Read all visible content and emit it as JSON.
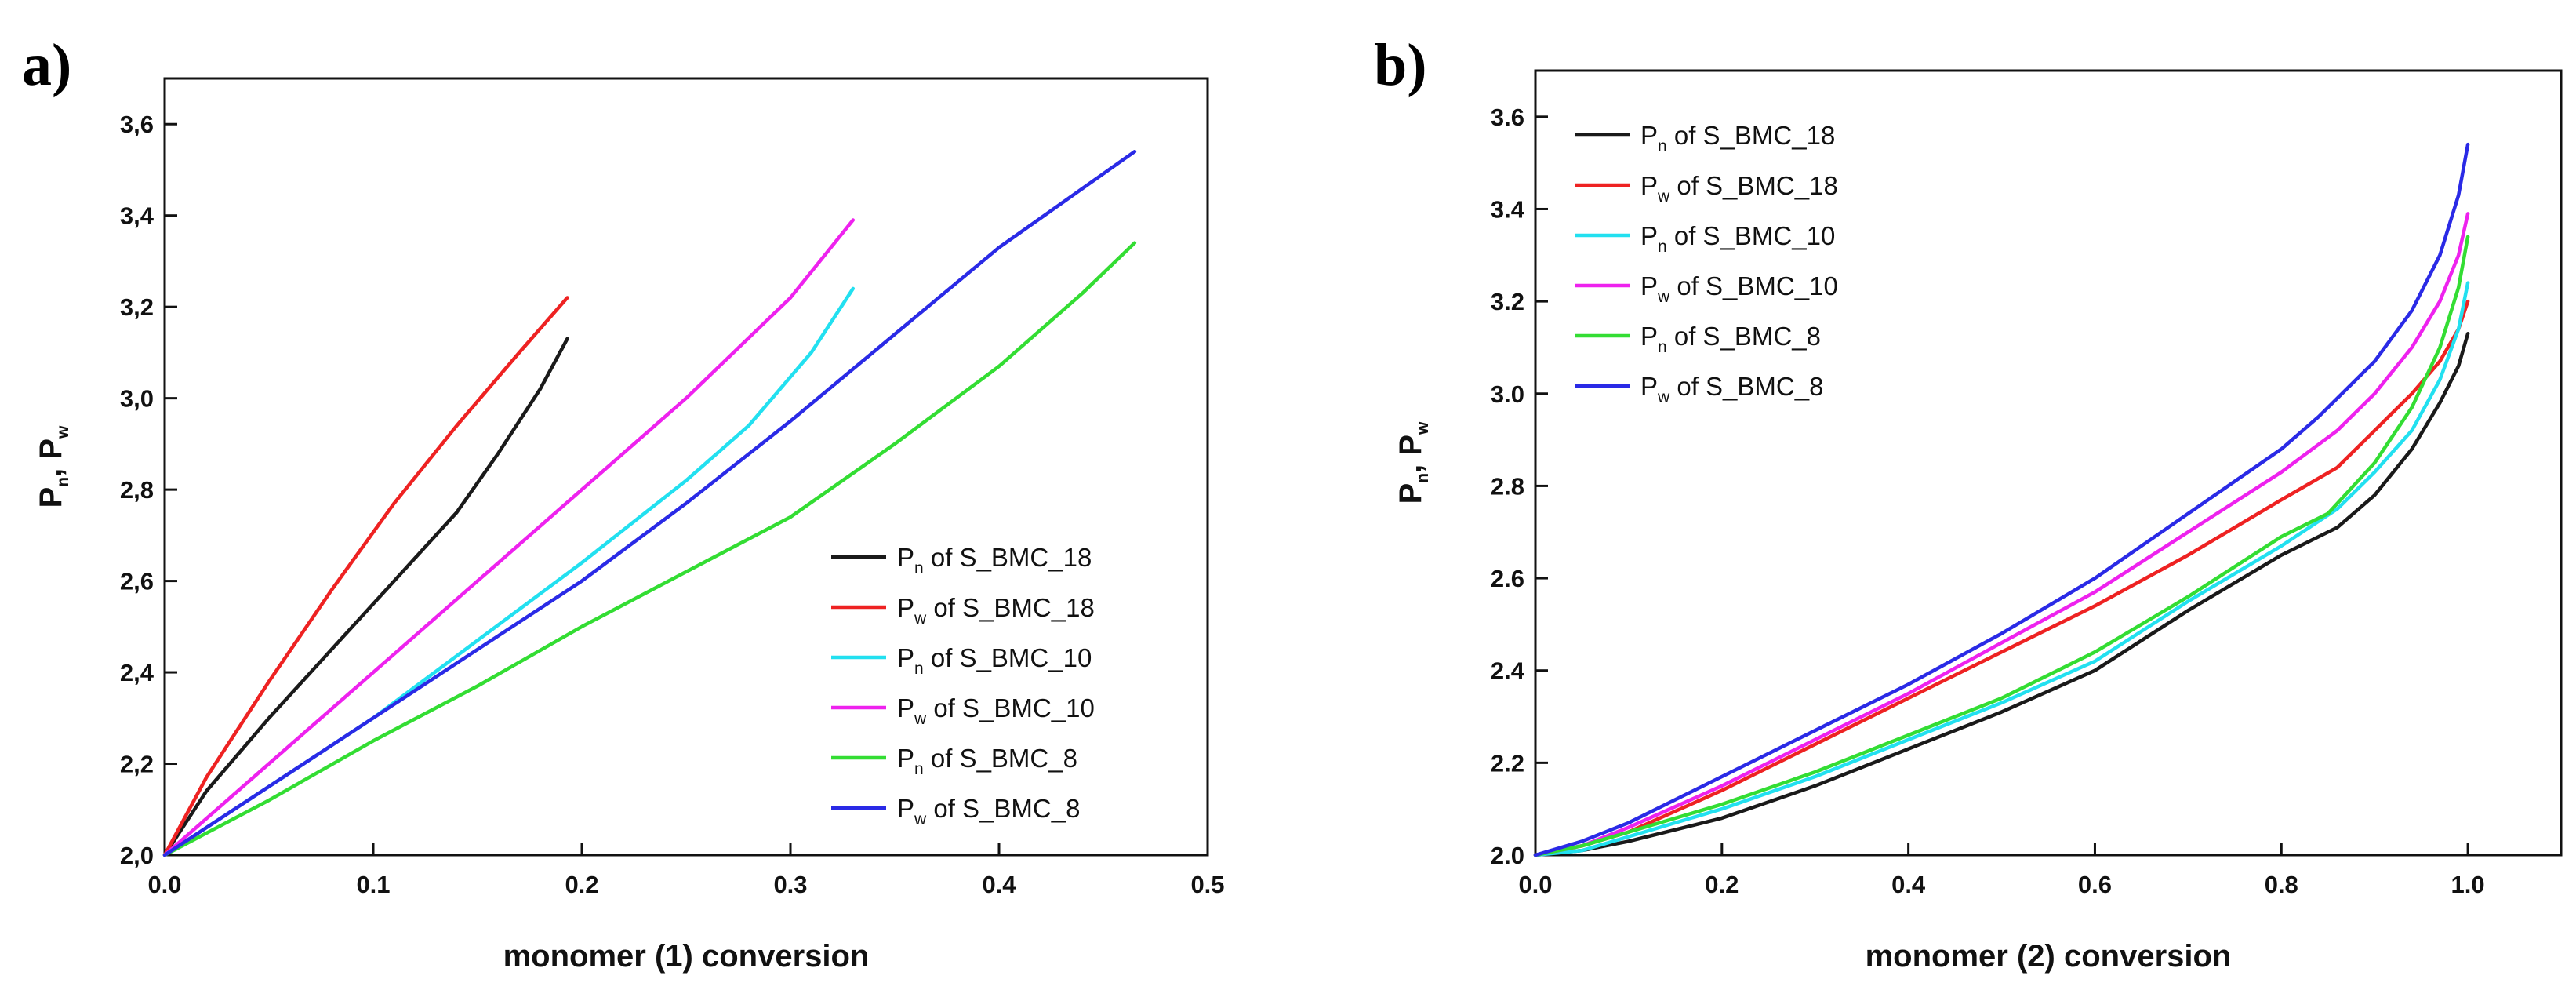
{
  "chart_data": [
    {
      "type": "line",
      "panel_label": "a)",
      "title": "",
      "xlabel": "monomer (1) conversion",
      "ylabel": {
        "main1": "P",
        "sub1": "n",
        "sep": ", ",
        "main2": "P",
        "sub2": "w"
      },
      "xlim": [
        0.0,
        0.5
      ],
      "ylim": [
        2.0,
        3.7
      ],
      "xticks": [
        0.0,
        0.1,
        0.2,
        0.3,
        0.4,
        0.5
      ],
      "xtick_labels": [
        "0.0",
        "0.1",
        "0.2",
        "0.3",
        "0.4",
        "0.5"
      ],
      "yticks": [
        2.0,
        2.2,
        2.4,
        2.6,
        2.8,
        3.0,
        3.2,
        3.4,
        3.6
      ],
      "ytick_labels": [
        "2,0",
        "2,2",
        "2,4",
        "2,6",
        "2,8",
        "3,0",
        "3,2",
        "3,4",
        "3,6"
      ],
      "legend_position": "lower-right",
      "series": [
        {
          "name": "Pn of S_BMC_18",
          "main": "P",
          "sub": "n",
          "rest": " of S_BMC_18",
          "color": "#1a1a1a",
          "x": [
            0,
            0.02,
            0.05,
            0.08,
            0.11,
            0.14,
            0.16,
            0.18,
            0.193
          ],
          "y": [
            2.0,
            2.14,
            2.3,
            2.45,
            2.6,
            2.75,
            2.88,
            3.02,
            3.13
          ]
        },
        {
          "name": "Pw of S_BMC_18",
          "main": "P",
          "sub": "w",
          "rest": " of S_BMC_18",
          "color": "#ee2222",
          "x": [
            0,
            0.02,
            0.05,
            0.08,
            0.11,
            0.14,
            0.17,
            0.193
          ],
          "y": [
            2.0,
            2.17,
            2.38,
            2.58,
            2.77,
            2.94,
            3.1,
            3.22
          ]
        },
        {
          "name": "Pn of S_BMC_10",
          "main": "P",
          "sub": "n",
          "rest": " of S_BMC_10",
          "color": "#22e0f0",
          "x": [
            0,
            0.05,
            0.1,
            0.15,
            0.2,
            0.25,
            0.28,
            0.31,
            0.33
          ],
          "y": [
            2.0,
            2.15,
            2.3,
            2.47,
            2.64,
            2.82,
            2.94,
            3.1,
            3.24
          ]
        },
        {
          "name": "Pw of S_BMC_10",
          "main": "P",
          "sub": "w",
          "rest": " of S_BMC_10",
          "color": "#ee22ee",
          "x": [
            0,
            0.05,
            0.1,
            0.15,
            0.2,
            0.25,
            0.3,
            0.33
          ],
          "y": [
            2.0,
            2.2,
            2.4,
            2.6,
            2.8,
            3.0,
            3.22,
            3.39
          ]
        },
        {
          "name": "Pn of S_BMC_8",
          "main": "P",
          "sub": "n",
          "rest": " of S_BMC_8",
          "color": "#33dd33",
          "x": [
            0,
            0.05,
            0.1,
            0.15,
            0.2,
            0.25,
            0.3,
            0.35,
            0.4,
            0.44,
            0.465
          ],
          "y": [
            2.0,
            2.12,
            2.25,
            2.37,
            2.5,
            2.62,
            2.74,
            2.9,
            3.07,
            3.23,
            3.34
          ]
        },
        {
          "name": "Pw of S_BMC_8",
          "main": "P",
          "sub": "w",
          "rest": " of S_BMC_8",
          "color": "#2a2ae6",
          "x": [
            0,
            0.05,
            0.1,
            0.15,
            0.2,
            0.25,
            0.3,
            0.35,
            0.4,
            0.465
          ],
          "y": [
            2.0,
            2.15,
            2.3,
            2.45,
            2.6,
            2.77,
            2.95,
            3.14,
            3.33,
            3.54
          ]
        }
      ]
    },
    {
      "type": "line",
      "panel_label": "b)",
      "title": "",
      "xlabel": "monomer (2) conversion",
      "ylabel": {
        "main1": "P",
        "sub1": "n",
        "sep": ", ",
        "main2": "P",
        "sub2": "w"
      },
      "xlim": [
        0.0,
        1.1
      ],
      "ylim": [
        2.0,
        3.7
      ],
      "xticks": [
        0.0,
        0.2,
        0.4,
        0.6,
        0.8,
        1.0
      ],
      "xtick_labels": [
        "0.0",
        "0.2",
        "0.4",
        "0.6",
        "0.8",
        "1.0"
      ],
      "yticks": [
        2.0,
        2.2,
        2.4,
        2.6,
        2.8,
        3.0,
        3.2,
        3.4,
        3.6
      ],
      "ytick_labels": [
        "2.0",
        "2.2",
        "2.4",
        "2.6",
        "2.8",
        "3.0",
        "3.2",
        "3.4",
        "3.6"
      ],
      "legend_position": "top-left",
      "series": [
        {
          "name": "Pn of S_BMC_18",
          "main": "P",
          "sub": "n",
          "rest": " of S_BMC_18",
          "color": "#1a1a1a",
          "x": [
            0,
            0.05,
            0.1,
            0.2,
            0.3,
            0.4,
            0.5,
            0.6,
            0.7,
            0.8,
            0.86,
            0.9,
            0.94,
            0.97,
            0.99,
            1.0
          ],
          "y": [
            2.0,
            2.01,
            2.03,
            2.08,
            2.15,
            2.23,
            2.31,
            2.4,
            2.53,
            2.65,
            2.71,
            2.78,
            2.88,
            2.98,
            3.06,
            3.13
          ]
        },
        {
          "name": "Pw of S_BMC_18",
          "main": "P",
          "sub": "w",
          "rest": " of S_BMC_18",
          "color": "#ee2222",
          "x": [
            0,
            0.05,
            0.1,
            0.2,
            0.3,
            0.4,
            0.5,
            0.6,
            0.7,
            0.8,
            0.86,
            0.9,
            0.94,
            0.97,
            0.99,
            1.0
          ],
          "y": [
            2.0,
            2.02,
            2.05,
            2.14,
            2.24,
            2.34,
            2.44,
            2.54,
            2.65,
            2.77,
            2.84,
            2.92,
            3.0,
            3.07,
            3.14,
            3.2
          ]
        },
        {
          "name": "Pn of S_BMC_10",
          "main": "P",
          "sub": "n",
          "rest": " of S_BMC_10",
          "color": "#22e0f0",
          "x": [
            0,
            0.05,
            0.1,
            0.2,
            0.3,
            0.4,
            0.5,
            0.6,
            0.7,
            0.8,
            0.86,
            0.9,
            0.94,
            0.97,
            0.99,
            1.0
          ],
          "y": [
            2.0,
            2.01,
            2.04,
            2.1,
            2.17,
            2.25,
            2.33,
            2.42,
            2.55,
            2.67,
            2.75,
            2.83,
            2.92,
            3.03,
            3.14,
            3.24
          ]
        },
        {
          "name": "Pw of S_BMC_10",
          "main": "P",
          "sub": "w",
          "rest": " of S_BMC_10",
          "color": "#ee22ee",
          "x": [
            0,
            0.05,
            0.1,
            0.2,
            0.3,
            0.4,
            0.5,
            0.6,
            0.7,
            0.8,
            0.86,
            0.9,
            0.94,
            0.97,
            0.99,
            1.0
          ],
          "y": [
            2.0,
            2.02,
            2.06,
            2.15,
            2.25,
            2.35,
            2.46,
            2.57,
            2.7,
            2.83,
            2.92,
            3.0,
            3.1,
            3.2,
            3.3,
            3.39
          ]
        },
        {
          "name": "Pn of S_BMC_8",
          "main": "P",
          "sub": "n",
          "rest": " of S_BMC_8",
          "color": "#33dd33",
          "x": [
            0,
            0.05,
            0.1,
            0.2,
            0.3,
            0.4,
            0.5,
            0.6,
            0.7,
            0.8,
            0.85,
            0.9,
            0.94,
            0.97,
            0.99,
            1.0
          ],
          "y": [
            2.0,
            2.02,
            2.05,
            2.11,
            2.18,
            2.26,
            2.34,
            2.44,
            2.56,
            2.69,
            2.74,
            2.85,
            2.97,
            3.1,
            3.23,
            3.34
          ]
        },
        {
          "name": "Pw of S_BMC_8",
          "main": "P",
          "sub": "w",
          "rest": " of S_BMC_8",
          "color": "#2a2ae6",
          "x": [
            0,
            0.05,
            0.1,
            0.2,
            0.3,
            0.4,
            0.5,
            0.6,
            0.7,
            0.8,
            0.84,
            0.9,
            0.94,
            0.97,
            0.99,
            1.0
          ],
          "y": [
            2.0,
            2.03,
            2.07,
            2.17,
            2.27,
            2.37,
            2.48,
            2.6,
            2.74,
            2.88,
            2.95,
            3.07,
            3.18,
            3.3,
            3.43,
            3.54
          ]
        }
      ]
    }
  ]
}
